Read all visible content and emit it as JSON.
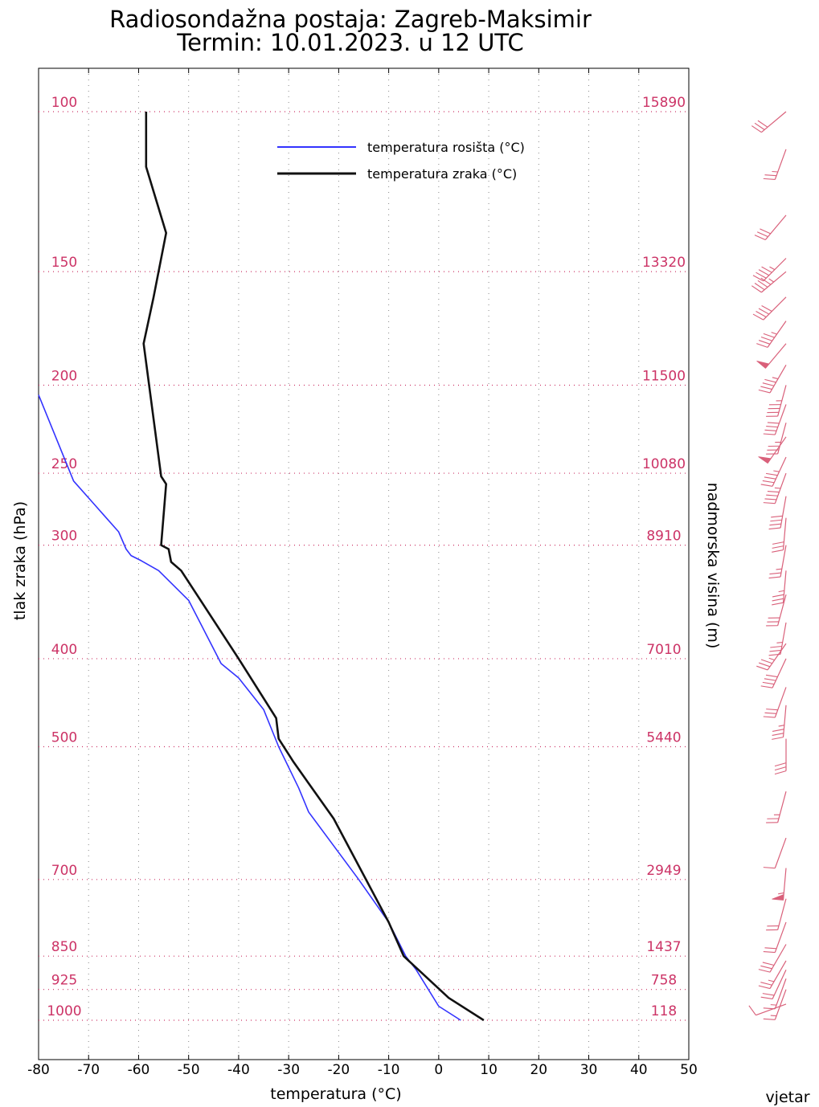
{
  "title_line1": "Radiosondažna postaja: Zagreb-Maksimir",
  "title_line2": "Termin: 10.01.2023. u 12 UTC",
  "colors": {
    "dewpoint": "#3333ff",
    "temperature": "#111111",
    "pressure_label": "#cc3366",
    "wind_barb": "#d9607a",
    "grid": "#888888"
  },
  "chart_data": {
    "type": "line",
    "title": "Radiosondažna postaja: Zagreb-Maksimir Termin: 10.01.2023. u 12 UTC",
    "xlabel": "temperatura (°C)",
    "ylabel": "tlak zraka (hPa)",
    "ylabel_right": "nadmorska visina (m)",
    "wind_label": "vjetar",
    "xlim": [
      -80,
      50
    ],
    "ylim": [
      1000,
      100
    ],
    "y_scale": "log",
    "grid": true,
    "legend_position": "top-center",
    "x_ticks": [
      "-80",
      "-70",
      "-60",
      "-50",
      "-40",
      "-30",
      "-20",
      "-10",
      "0",
      "10",
      "20",
      "30",
      "40",
      "50"
    ],
    "pressure_levels": [
      {
        "p": 100,
        "label": "100",
        "height": "15890"
      },
      {
        "p": 150,
        "label": "150",
        "height": "13320"
      },
      {
        "p": 200,
        "label": "200",
        "height": "11500"
      },
      {
        "p": 250,
        "label": "250",
        "height": "10080"
      },
      {
        "p": 300,
        "label": "300",
        "height": "8910"
      },
      {
        "p": 400,
        "label": "400",
        "height": "7010"
      },
      {
        "p": 500,
        "label": "500",
        "height": "5440"
      },
      {
        "p": 700,
        "label": "700",
        "height": "2949"
      },
      {
        "p": 850,
        "label": "850",
        "height": "1437"
      },
      {
        "p": 925,
        "label": "925",
        "height": "758"
      },
      {
        "p": 1000,
        "label": "1000",
        "height": "118"
      }
    ],
    "series": [
      {
        "name": "temperatura rosišta (°C)",
        "points": [
          [
            4.4,
            1000
          ],
          [
            0,
            965
          ],
          [
            -4.5,
            880
          ],
          [
            -6.6,
            850
          ],
          [
            -10,
            780
          ],
          [
            -16,
            700
          ],
          [
            -26,
            590
          ],
          [
            -28,
            555
          ],
          [
            -32,
            500
          ],
          [
            -35,
            455
          ],
          [
            -40,
            420
          ],
          [
            -43.5,
            405
          ],
          [
            -44,
            400
          ],
          [
            -50,
            345
          ],
          [
            -56,
            320
          ],
          [
            -59.5,
            312
          ],
          [
            -61.5,
            308
          ],
          [
            -62.5,
            303
          ],
          [
            -64,
            290
          ],
          [
            -69,
            270
          ],
          [
            -73,
            255
          ],
          [
            -80,
            205
          ]
        ]
      },
      {
        "name": "temperatura zraka (°C)",
        "points": [
          [
            9,
            1000
          ],
          [
            2,
            945
          ],
          [
            -7,
            850
          ],
          [
            -10,
            780
          ],
          [
            -21,
            600
          ],
          [
            -29,
            520
          ],
          [
            -32,
            490
          ],
          [
            -32.5,
            465
          ],
          [
            -40,
            400
          ],
          [
            -51.5,
            320
          ],
          [
            -53.5,
            313
          ],
          [
            -54,
            303
          ],
          [
            -55.5,
            300
          ],
          [
            -54.5,
            257
          ],
          [
            -55.5,
            252
          ],
          [
            -59,
            180
          ],
          [
            -57,
            160
          ],
          [
            -54.5,
            136
          ],
          [
            -58.5,
            115
          ],
          [
            -58.5,
            100
          ]
        ]
      }
    ],
    "wind_barbs": [
      {
        "p": 960,
        "dir": 250,
        "speed": 10
      },
      {
        "p": 925,
        "dir": 200,
        "speed": 15
      },
      {
        "p": 900,
        "dir": 200,
        "speed": 15
      },
      {
        "p": 880,
        "dir": 205,
        "speed": 20
      },
      {
        "p": 860,
        "dir": 210,
        "speed": 25
      },
      {
        "p": 825,
        "dir": 210,
        "speed": 30
      },
      {
        "p": 780,
        "dir": 200,
        "speed": 20
      },
      {
        "p": 735,
        "dir": 195,
        "speed": 20
      },
      {
        "p": 680,
        "dir": 185,
        "speed": 55
      },
      {
        "p": 630,
        "dir": 200,
        "speed": 10
      },
      {
        "p": 560,
        "dir": 195,
        "speed": 25
      },
      {
        "p": 490,
        "dir": 180,
        "speed": 30
      },
      {
        "p": 450,
        "dir": 185,
        "speed": 35
      },
      {
        "p": 430,
        "dir": 200,
        "speed": 30
      },
      {
        "p": 400,
        "dir": 205,
        "speed": 40
      },
      {
        "p": 385,
        "dir": 215,
        "speed": 35
      },
      {
        "p": 365,
        "dir": 190,
        "speed": 35
      },
      {
        "p": 340,
        "dir": 195,
        "speed": 30
      },
      {
        "p": 320,
        "dir": 185,
        "speed": 35
      },
      {
        "p": 300,
        "dir": 190,
        "speed": 25
      },
      {
        "p": 280,
        "dir": 185,
        "speed": 30
      },
      {
        "p": 265,
        "dir": 190,
        "speed": 40
      },
      {
        "p": 250,
        "dir": 200,
        "speed": 45
      },
      {
        "p": 240,
        "dir": 205,
        "speed": 45
      },
      {
        "p": 228,
        "dir": 215,
        "speed": 50
      },
      {
        "p": 220,
        "dir": 195,
        "speed": 35
      },
      {
        "p": 210,
        "dir": 200,
        "speed": 40
      },
      {
        "p": 200,
        "dir": 195,
        "speed": 45
      },
      {
        "p": 190,
        "dir": 210,
        "speed": 45
      },
      {
        "p": 180,
        "dir": 220,
        "speed": 50
      },
      {
        "p": 170,
        "dir": 215,
        "speed": 45
      },
      {
        "p": 160,
        "dir": 225,
        "speed": 40
      },
      {
        "p": 150,
        "dir": 230,
        "speed": 45
      },
      {
        "p": 145,
        "dir": 225,
        "speed": 45
      },
      {
        "p": 130,
        "dir": 220,
        "speed": 30
      },
      {
        "p": 110,
        "dir": 200,
        "speed": 25
      },
      {
        "p": 100,
        "dir": 230,
        "speed": 30
      }
    ]
  }
}
